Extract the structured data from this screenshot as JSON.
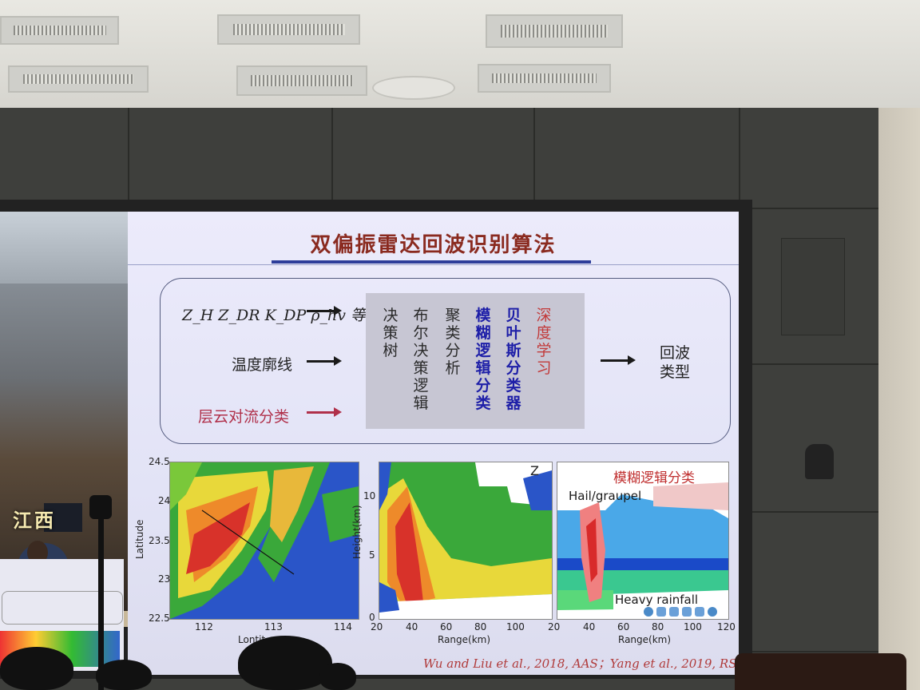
{
  "slide": {
    "title": "双偏振雷达回波识别算法",
    "inputs": [
      {
        "label": "Z_H Z_DR K_DP ρ_hv 等"
      },
      {
        "label": "温度廓线"
      },
      {
        "label": "层云对流分类"
      }
    ],
    "algorithms": [
      {
        "label": "决策树",
        "style": "normal"
      },
      {
        "label": "布尔决策逻辑",
        "style": "normal"
      },
      {
        "label": "聚类分析",
        "style": "normal"
      },
      {
        "label": "模糊逻辑分类",
        "style": "blue"
      },
      {
        "label": "贝叶斯分类器",
        "style": "blue"
      },
      {
        "label": "深度学习",
        "style": "red"
      }
    ],
    "output": "回波类型",
    "plot1": {
      "y_ticks": [
        "24.5",
        "24",
        "23.5",
        "23",
        "22.5"
      ],
      "x_ticks": [
        "112",
        "113",
        "114"
      ],
      "ylabel": "Latitude",
      "xlabel": "Lontit"
    },
    "plot2": {
      "label": "Z",
      "y_ticks": [
        "10",
        "5",
        "0"
      ],
      "x_ticks": [
        "20",
        "40",
        "60",
        "80",
        "100"
      ],
      "ylabel": "Height(km)",
      "xlabel": "Range(km)"
    },
    "plot3": {
      "title": "模糊逻辑分类",
      "annotations": [
        "Hail/graupel",
        "Heavy rainfall"
      ],
      "x_ticks": [
        "20",
        "40",
        "60",
        "80",
        "100",
        "120"
      ],
      "xlabel": "Range(km)"
    },
    "citation": "Wu and Liu et al., 2018, AAS；Yang et al., 2019, RS"
  },
  "video_inset": {
    "location_text": "江西"
  },
  "colors": {
    "title": "#8a2a1f",
    "rule": "#2d3d9a",
    "highlight_blue": "#1e1fa8",
    "highlight_red": "#c23a3a",
    "input_arrow_red": "#b0304a"
  }
}
